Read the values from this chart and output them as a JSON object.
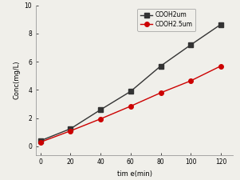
{
  "x": [
    0,
    20,
    40,
    60,
    80,
    100,
    120
  ],
  "y_black": [
    0.4,
    1.25,
    2.6,
    3.9,
    5.7,
    7.2,
    8.65
  ],
  "y_red": [
    0.3,
    1.1,
    1.95,
    2.85,
    3.8,
    4.65,
    5.7
  ],
  "black_label": "COOH2um",
  "red_label": "COOH2.5um",
  "xlabel": "tim e(min)",
  "ylabel": "Conc(mg/L)",
  "xlim": [
    -3,
    128
  ],
  "ylim": [
    -0.6,
    10
  ],
  "yticks": [
    0,
    2,
    4,
    6,
    8,
    10
  ],
  "xticks": [
    0,
    20,
    40,
    60,
    80,
    100,
    120
  ],
  "black_color": "#333333",
  "red_color": "#cc0000",
  "bg_color": "#f0efea",
  "linewidth": 1.0,
  "markersize": 4
}
